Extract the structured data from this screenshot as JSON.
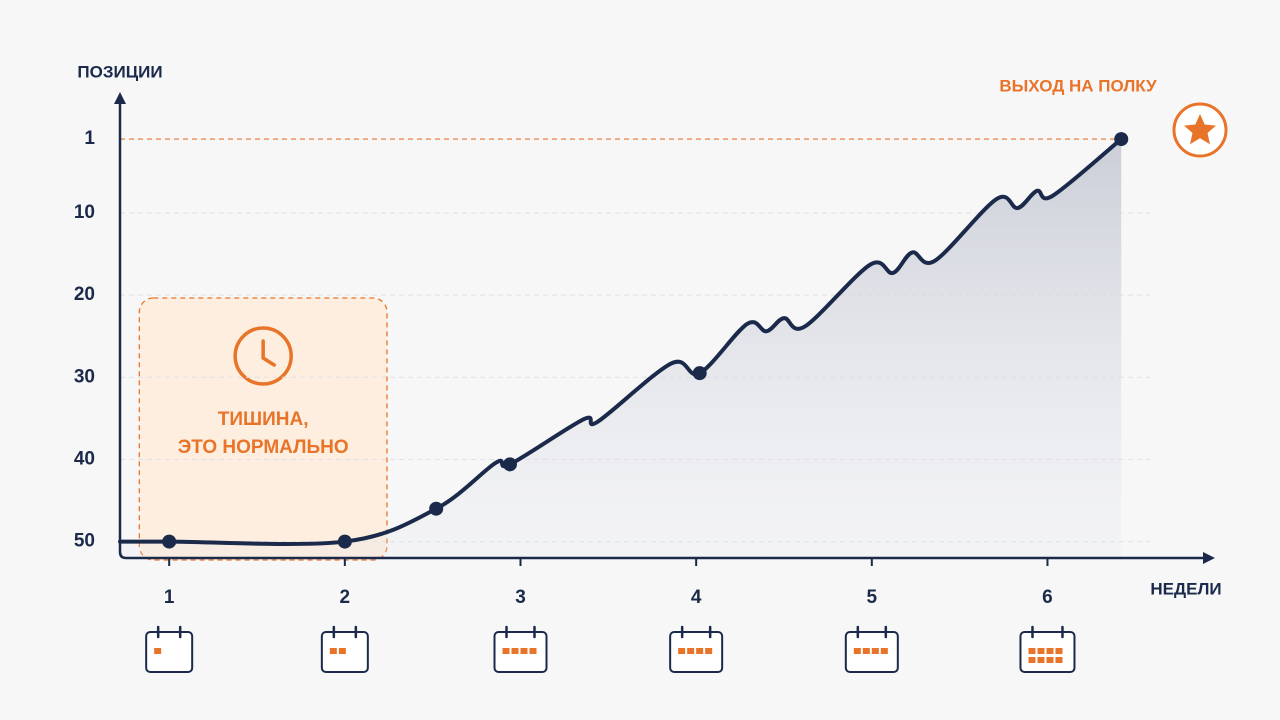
{
  "chart_data": {
    "type": "line",
    "y_label": "ПОЗИЦИИ",
    "x_label": "НЕДЕЛИ",
    "annotation": "ВЫХОД НА ПОЛКУ",
    "quiet_note": [
      "ТИШИНА,",
      "ЭТО НОРМАЛЬНО"
    ],
    "quiet_zone": [
      0.83,
      2.24
    ],
    "target": 1,
    "x": [
      0.72,
      1,
      2,
      2.52,
      2.86,
      2.94,
      3.36,
      3.44,
      3.86,
      4.02,
      4.29,
      4.4,
      4.5,
      4.62,
      4.99,
      5.12,
      5.23,
      5.36,
      5.71,
      5.83,
      5.94,
      6.03,
      6.42
    ],
    "series": [
      {
        "color": "#1b2a4a",
        "values": [
          50,
          50,
          50,
          46,
          40.4,
          40.6,
          35.1,
          35.4,
          28.3,
          29.5,
          23.5,
          24.4,
          22.8,
          23.8,
          16.3,
          17.3,
          14.8,
          15.8,
          8.3,
          9.4,
          7.3,
          7.9,
          1
        ]
      }
    ],
    "marker_indices": [
      1,
      2,
      3,
      5,
      9,
      22
    ],
    "xlim": [
      0.72,
      6.8
    ],
    "ylim": [
      -4,
      52
    ],
    "y_inverted": true,
    "xticks": [
      1,
      2,
      3,
      4,
      5,
      6
    ],
    "yticks": [
      1,
      10,
      20,
      30,
      40,
      50
    ],
    "activity": [
      1,
      2,
      4,
      4,
      4,
      8
    ],
    "grid": true,
    "accent": "#e8742a"
  }
}
